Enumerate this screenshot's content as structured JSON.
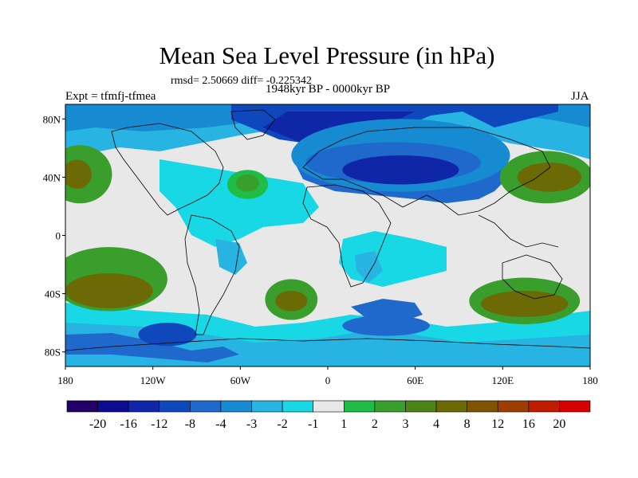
{
  "figure": {
    "title": "Mean Sea Level Pressure (in hPa)",
    "stats": "rmsd= 2.50669 diff= -0.225342",
    "period": "1948kyr BP - 0000kyr BP",
    "experiment": "Expt = tfmfj-tfmea",
    "season": "JJA"
  },
  "axes": {
    "lat_ticks": [
      {
        "lat": 80,
        "label": "80N"
      },
      {
        "lat": 40,
        "label": "40N"
      },
      {
        "lat": 0,
        "label": "0"
      },
      {
        "lat": -40,
        "label": "40S"
      },
      {
        "lat": -80,
        "label": "80S"
      }
    ],
    "lon_ticks": [
      {
        "lon": -180,
        "label": "180"
      },
      {
        "lon": -120,
        "label": "120W"
      },
      {
        "lon": -60,
        "label": "60W"
      },
      {
        "lon": 0,
        "label": "0"
      },
      {
        "lon": 60,
        "label": "60E"
      },
      {
        "lon": 120,
        "label": "120E"
      },
      {
        "lon": 180,
        "label": "180"
      }
    ]
  },
  "colorbar": {
    "colors": [
      "#210068",
      "#0b0c8f",
      "#1026a8",
      "#0f47bd",
      "#1f69cc",
      "#178bd2",
      "#28b4e2",
      "#18d8e6",
      "#e8e8e8",
      "#1fbc46",
      "#3a9e2c",
      "#4d8418",
      "#6b6a05",
      "#805300",
      "#9e3d00",
      "#bf1c00",
      "#d70000"
    ],
    "labels": [
      "-20",
      "-16",
      "-12",
      "-8",
      "-4",
      "-3",
      "-2",
      "-1",
      "1",
      "2",
      "3",
      "4",
      "8",
      "12",
      "16",
      "20"
    ]
  },
  "map_regions": [
    {
      "name": "north-pacific-high-anomaly",
      "color": "#3a9e2c",
      "lon": -170,
      "lat": 42,
      "rlon": 22,
      "rlat": 20
    },
    {
      "name": "north-pacific-high-core",
      "color": "#6b6a05",
      "lon": -172,
      "lat": 42,
      "rlon": 10,
      "rlat": 10
    },
    {
      "name": "west-pacific-high-anomaly",
      "color": "#3a9e2c",
      "lon": 150,
      "lat": 40,
      "rlon": 32,
      "rlat": 18
    },
    {
      "name": "west-pacific-high-core",
      "color": "#6b6a05",
      "lon": 152,
      "lat": 40,
      "rlon": 22,
      "rlat": 10
    },
    {
      "name": "atlantic-high-anomaly",
      "color": "#1fbc46",
      "lon": -55,
      "lat": 35,
      "rlon": 14,
      "rlat": 10
    },
    {
      "name": "atlantic-high-core",
      "color": "#3a9e2c",
      "lon": -55,
      "lat": 36,
      "rlon": 8,
      "rlat": 6
    },
    {
      "name": "south-pacific-high-anomaly",
      "color": "#3a9e2c",
      "lon": -150,
      "lat": -30,
      "rlon": 40,
      "rlat": 22
    },
    {
      "name": "south-pacific-high-core",
      "color": "#6b6a05",
      "lon": -150,
      "lat": -38,
      "rlon": 30,
      "rlat": 12
    },
    {
      "name": "south-atlantic-high-anomaly",
      "color": "#3a9e2c",
      "lon": -25,
      "lat": -44,
      "rlon": 18,
      "rlat": 14
    },
    {
      "name": "south-atlantic-high-core",
      "color": "#6b6a05",
      "lon": -25,
      "lat": -45,
      "rlon": 11,
      "rlat": 7
    },
    {
      "name": "australia-high-anomaly",
      "color": "#3a9e2c",
      "lon": 135,
      "lat": -45,
      "rlon": 38,
      "rlat": 16
    },
    {
      "name": "australia-high-core",
      "color": "#6b6a05",
      "lon": 135,
      "lat": -47,
      "rlon": 30,
      "rlat": 9
    },
    {
      "name": "eurasia-low-outer",
      "color": "#178bd2",
      "lon": 50,
      "lat": 55,
      "rlon": 75,
      "rlat": 25
    },
    {
      "name": "eurasia-low-inner",
      "color": "#1f69cc",
      "lon": 45,
      "lat": 50,
      "rlon": 60,
      "rlat": 14
    },
    {
      "name": "eurasia-low-core",
      "color": "#1026a8",
      "lon": 50,
      "lat": 45,
      "rlon": 40,
      "rlat": 10
    },
    {
      "name": "southern-ocean-low",
      "color": "#1f69cc",
      "lon": 40,
      "lat": -62,
      "rlon": 30,
      "rlat": 7
    },
    {
      "name": "south-pacific-low",
      "color": "#0f47bd",
      "lon": -110,
      "lat": -68,
      "rlon": 20,
      "rlat": 8
    }
  ]
}
